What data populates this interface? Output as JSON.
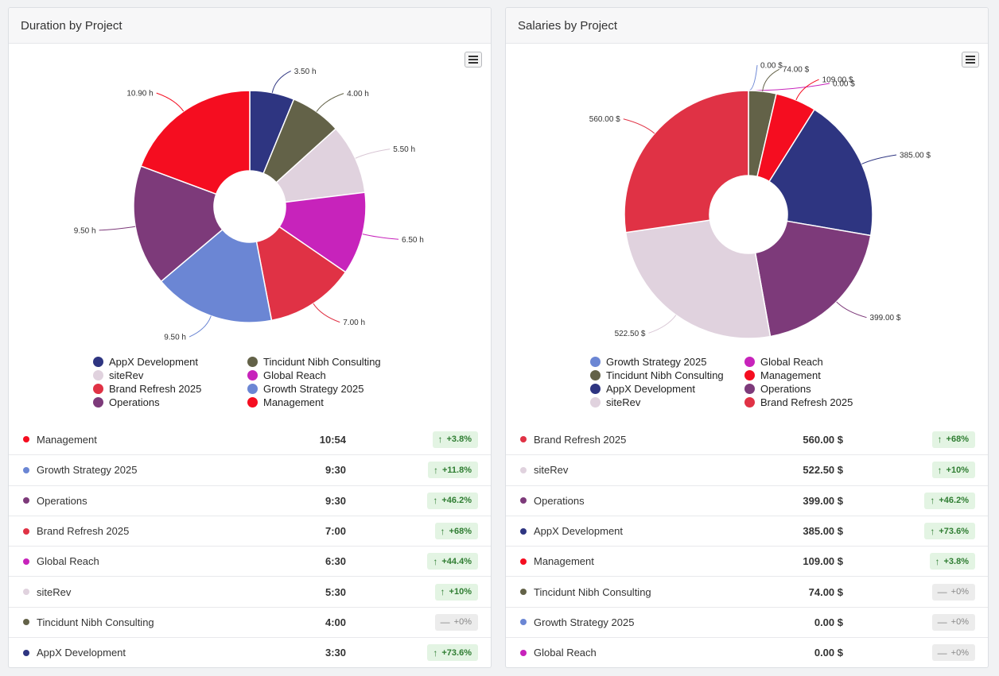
{
  "panels": [
    {
      "id": "duration",
      "title": "Duration by Project",
      "chart_data": {
        "type": "pie",
        "subtype": "donut",
        "title": "Duration by Project",
        "unit": "h",
        "slices": [
          {
            "name": "AppX Development",
            "value": 3.5,
            "label": "3.50 h",
            "color": "#2e3581"
          },
          {
            "name": "Tincidunt Nibh Consulting",
            "value": 4.0,
            "label": "4.00 h",
            "color": "#636248"
          },
          {
            "name": "siteRev",
            "value": 5.5,
            "label": "5.50 h",
            "color": "#e0d2de"
          },
          {
            "name": "Global Reach",
            "value": 6.5,
            "label": "6.50 h",
            "color": "#c723bb"
          },
          {
            "name": "Brand Refresh 2025",
            "value": 7.0,
            "label": "7.00 h",
            "color": "#e03245"
          },
          {
            "name": "Growth Strategy 2025",
            "value": 9.5,
            "label": "9.50 h",
            "color": "#6b86d4"
          },
          {
            "name": "Operations",
            "value": 9.5,
            "label": "9.50 h",
            "color": "#7d3a7a"
          },
          {
            "name": "Management",
            "value": 10.9,
            "label": "10.90 h",
            "color": "#f50d20"
          }
        ],
        "legend": [
          {
            "name": "AppX Development",
            "color": "#2e3581"
          },
          {
            "name": "Tincidunt Nibh Consulting",
            "color": "#636248"
          },
          {
            "name": "siteRev",
            "color": "#e0d2de"
          },
          {
            "name": "Global Reach",
            "color": "#c723bb"
          },
          {
            "name": "Brand Refresh 2025",
            "color": "#e03245"
          },
          {
            "name": "Growth Strategy 2025",
            "color": "#6b86d4"
          },
          {
            "name": "Operations",
            "color": "#7d3a7a"
          },
          {
            "name": "Management",
            "color": "#f50d20"
          }
        ],
        "legend_position": "bottom"
      },
      "rows": [
        {
          "name": "Management",
          "color": "#f50d20",
          "value": "10:54",
          "change": "+3.8%",
          "trend": "up"
        },
        {
          "name": "Growth Strategy 2025",
          "color": "#6b86d4",
          "value": "9:30",
          "change": "+11.8%",
          "trend": "up"
        },
        {
          "name": "Operations",
          "color": "#7d3a7a",
          "value": "9:30",
          "change": "+46.2%",
          "trend": "up"
        },
        {
          "name": "Brand Refresh 2025",
          "color": "#e03245",
          "value": "7:00",
          "change": "+68%",
          "trend": "up"
        },
        {
          "name": "Global Reach",
          "color": "#c723bb",
          "value": "6:30",
          "change": "+44.4%",
          "trend": "up"
        },
        {
          "name": "siteRev",
          "color": "#e0d2de",
          "value": "5:30",
          "change": "+10%",
          "trend": "up"
        },
        {
          "name": "Tincidunt Nibh Consulting",
          "color": "#636248",
          "value": "4:00",
          "change": "+0%",
          "trend": "flat"
        },
        {
          "name": "AppX Development",
          "color": "#2e3581",
          "value": "3:30",
          "change": "+73.6%",
          "trend": "up"
        }
      ]
    },
    {
      "id": "salaries",
      "title": "Salaries by Project",
      "chart_data": {
        "type": "pie",
        "subtype": "donut",
        "title": "Salaries by Project",
        "unit": "$",
        "slices": [
          {
            "name": "Growth Strategy 2025",
            "value": 0.0,
            "label": "0.00 $",
            "color": "#6b86d4"
          },
          {
            "name": "Global Reach",
            "value": 0.0,
            "label": "0.00 $",
            "color": "#c723bb"
          },
          {
            "name": "Tincidunt Nibh Consulting",
            "value": 74.0,
            "label": "74.00 $",
            "color": "#636248"
          },
          {
            "name": "Management",
            "value": 109.0,
            "label": "109.00 $",
            "color": "#f50d20"
          },
          {
            "name": "AppX Development",
            "value": 385.0,
            "label": "385.00 $",
            "color": "#2e3581"
          },
          {
            "name": "Operations",
            "value": 399.0,
            "label": "399.00 $",
            "color": "#7d3a7a"
          },
          {
            "name": "siteRev",
            "value": 522.5,
            "label": "522.50 $",
            "color": "#e0d2de"
          },
          {
            "name": "Brand Refresh 2025",
            "value": 560.0,
            "label": "560.00 $",
            "color": "#e03245"
          }
        ],
        "legend": [
          {
            "name": "Growth Strategy 2025",
            "color": "#6b86d4"
          },
          {
            "name": "Global Reach",
            "color": "#c723bb"
          },
          {
            "name": "Tincidunt Nibh Consulting",
            "color": "#636248"
          },
          {
            "name": "Management",
            "color": "#f50d20"
          },
          {
            "name": "AppX Development",
            "color": "#2e3581"
          },
          {
            "name": "Operations",
            "color": "#7d3a7a"
          },
          {
            "name": "siteRev",
            "color": "#e0d2de"
          },
          {
            "name": "Brand Refresh 2025",
            "color": "#e03245"
          }
        ],
        "legend_position": "bottom"
      },
      "rows": [
        {
          "name": "Brand Refresh 2025",
          "color": "#e03245",
          "value": "560.00 $",
          "change": "+68%",
          "trend": "up"
        },
        {
          "name": "siteRev",
          "color": "#e0d2de",
          "value": "522.50 $",
          "change": "+10%",
          "trend": "up"
        },
        {
          "name": "Operations",
          "color": "#7d3a7a",
          "value": "399.00 $",
          "change": "+46.2%",
          "trend": "up"
        },
        {
          "name": "AppX Development",
          "color": "#2e3581",
          "value": "385.00 $",
          "change": "+73.6%",
          "trend": "up"
        },
        {
          "name": "Management",
          "color": "#f50d20",
          "value": "109.00 $",
          "change": "+3.8%",
          "trend": "up"
        },
        {
          "name": "Tincidunt Nibh Consulting",
          "color": "#636248",
          "value": "74.00 $",
          "change": "+0%",
          "trend": "flat"
        },
        {
          "name": "Growth Strategy 2025",
          "color": "#6b86d4",
          "value": "0.00 $",
          "change": "+0%",
          "trend": "flat"
        },
        {
          "name": "Global Reach",
          "color": "#c723bb",
          "value": "0.00 $",
          "change": "+0%",
          "trend": "flat"
        }
      ]
    }
  ],
  "icons": {
    "menu": "hamburger-menu-icon",
    "up": "arrow-up-icon",
    "flat": "dash-icon"
  }
}
